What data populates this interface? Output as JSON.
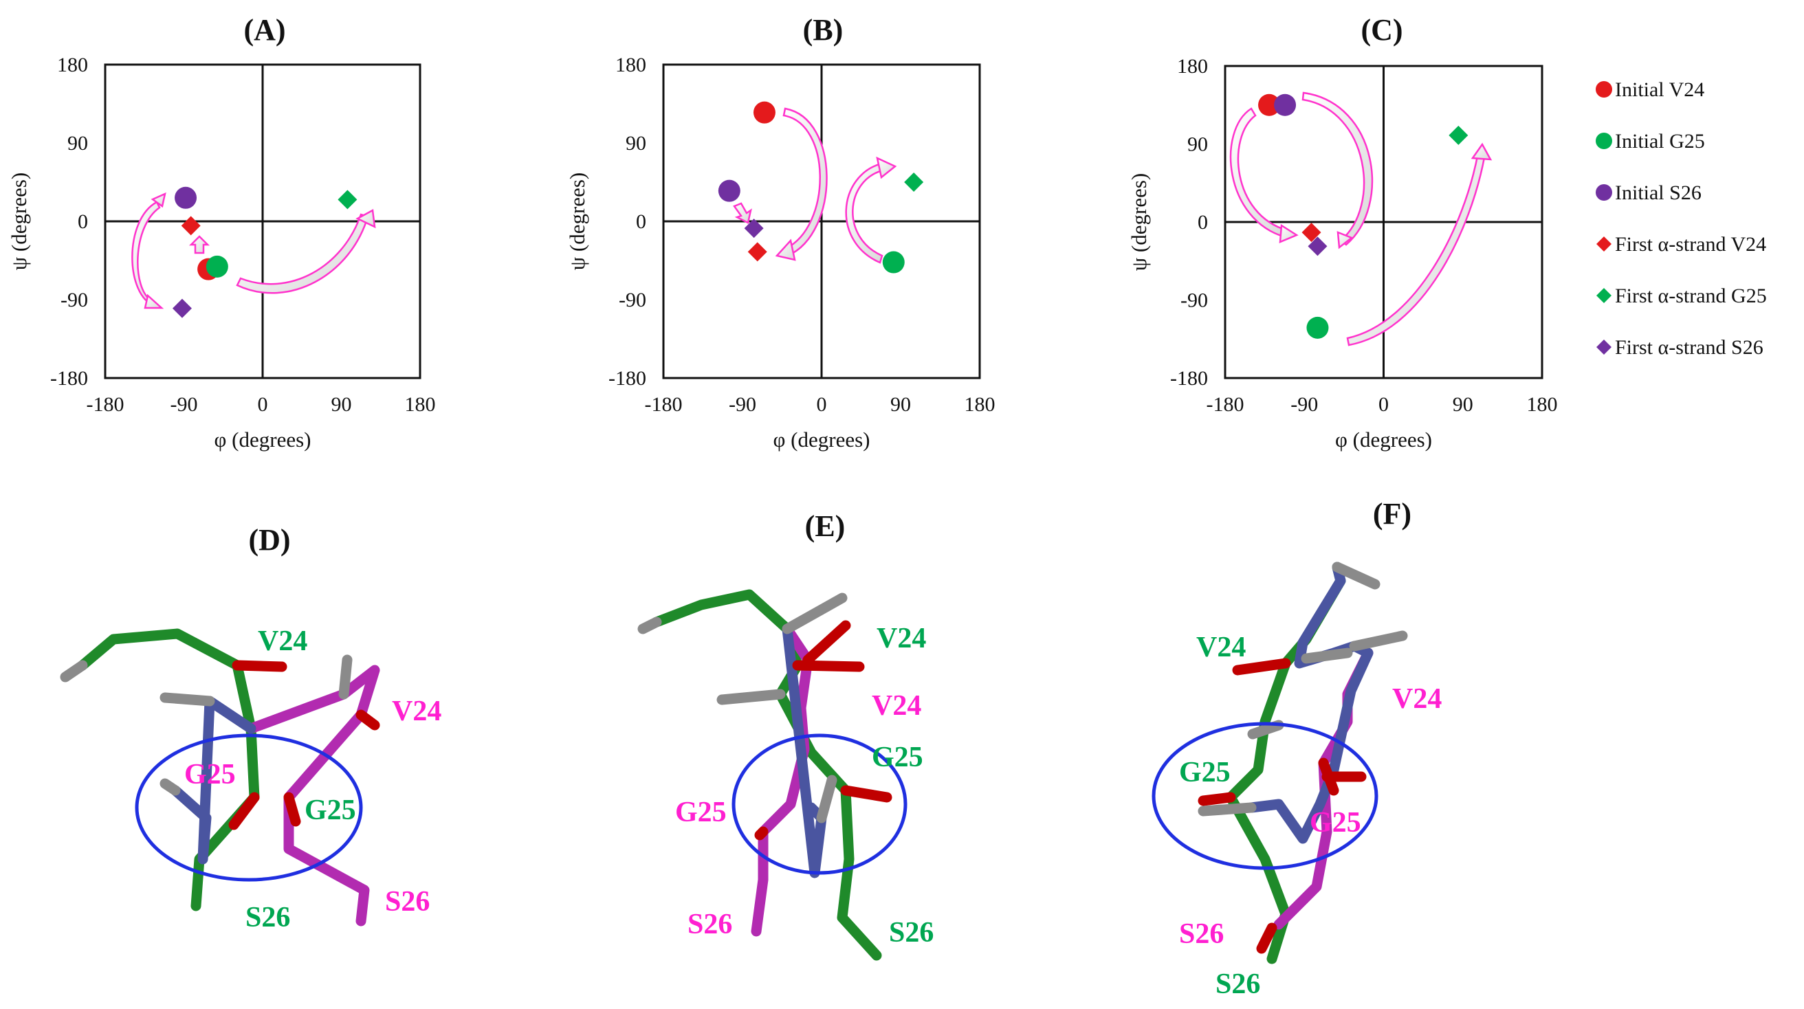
{
  "chart_data": [
    {
      "type": "scatter",
      "panel_label": "(A)",
      "xlabel": "φ (degrees)",
      "ylabel": "ψ (degrees)",
      "xlim": [
        -180,
        180
      ],
      "ylim": [
        -180,
        180
      ],
      "xticks": [
        "-180",
        "-90",
        "0",
        "90",
        "180"
      ],
      "yticks": [
        "180",
        "90",
        "0",
        "-90",
        "-180"
      ],
      "series": [
        {
          "name": "Initial V24",
          "x": -62,
          "y": -55
        },
        {
          "name": "Initial G25",
          "x": -52,
          "y": -52
        },
        {
          "name": "Initial S26",
          "x": -88,
          "y": 27
        },
        {
          "name": "First α-strand V24",
          "x": -82,
          "y": -5
        },
        {
          "name": "First α-strand G25",
          "x": 97,
          "y": 25
        },
        {
          "name": "First α-strand S26",
          "x": -92,
          "y": -100
        }
      ]
    },
    {
      "type": "scatter",
      "panel_label": "(B)",
      "xlabel": "φ (degrees)",
      "ylabel": "ψ (degrees)",
      "xlim": [
        -180,
        180
      ],
      "ylim": [
        -180,
        180
      ],
      "xticks": [
        "-180",
        "-90",
        "0",
        "90",
        "180"
      ],
      "yticks": [
        "180",
        "90",
        "0",
        "-90",
        "-180"
      ],
      "series": [
        {
          "name": "Initial V24",
          "x": -65,
          "y": 125
        },
        {
          "name": "Initial G25",
          "x": 82,
          "y": -47
        },
        {
          "name": "Initial S26",
          "x": -105,
          "y": 35
        },
        {
          "name": "First α-strand V24",
          "x": -73,
          "y": -35
        },
        {
          "name": "First α-strand G25",
          "x": 105,
          "y": 45
        },
        {
          "name": "First α-strand S26",
          "x": -77,
          "y": -8
        }
      ]
    },
    {
      "type": "scatter",
      "panel_label": "(C)",
      "xlabel": "φ (degrees)",
      "ylabel": "ψ (degrees)",
      "xlim": [
        -180,
        180
      ],
      "ylim": [
        -180,
        180
      ],
      "xticks": [
        "-180",
        "-90",
        "0",
        "90",
        "180"
      ],
      "yticks": [
        "180",
        "90",
        "0",
        "-90",
        "-180"
      ],
      "series": [
        {
          "name": "Initial V24",
          "x": -130,
          "y": 135
        },
        {
          "name": "Initial G25",
          "x": -75,
          "y": -122
        },
        {
          "name": "Initial S26",
          "x": -112,
          "y": 135
        },
        {
          "name": "First α-strand V24",
          "x": -82,
          "y": -12
        },
        {
          "name": "First α-strand G25",
          "x": 85,
          "y": 100
        },
        {
          "name": "First α-strand S26",
          "x": -75,
          "y": -28
        }
      ]
    }
  ],
  "legend": {
    "placement": "right",
    "entries": [
      {
        "label": "Initial V24",
        "marker": "circle",
        "color": "#e41a1c"
      },
      {
        "label": "Initial G25",
        "marker": "circle",
        "color": "#00b050"
      },
      {
        "label": "Initial S26",
        "marker": "circle",
        "color": "#7030a0"
      },
      {
        "label": "First α-strand V24",
        "marker": "diamond",
        "color": "#e41a1c"
      },
      {
        "label": "First α-strand G25",
        "marker": "diamond",
        "color": "#00b050"
      },
      {
        "label": "First α-strand S26",
        "marker": "diamond",
        "color": "#7030a0"
      }
    ]
  },
  "structures": [
    {
      "panel_label": "(D)",
      "labels": [
        {
          "text": "V24",
          "color": "green"
        },
        {
          "text": "V24",
          "color": "magenta"
        },
        {
          "text": "G25",
          "color": "magenta"
        },
        {
          "text": "G25",
          "color": "green"
        },
        {
          "text": "S26",
          "color": "green"
        },
        {
          "text": "S26",
          "color": "magenta"
        }
      ]
    },
    {
      "panel_label": "(E)",
      "labels": [
        {
          "text": "V24",
          "color": "green"
        },
        {
          "text": "V24",
          "color": "magenta"
        },
        {
          "text": "G25",
          "color": "green"
        },
        {
          "text": "G25",
          "color": "magenta"
        },
        {
          "text": "S26",
          "color": "magenta"
        },
        {
          "text": "S26",
          "color": "green"
        }
      ]
    },
    {
      "panel_label": "(F)",
      "labels": [
        {
          "text": "V24",
          "color": "green"
        },
        {
          "text": "V24",
          "color": "magenta"
        },
        {
          "text": "G25",
          "color": "green"
        },
        {
          "text": "G25",
          "color": "magenta"
        },
        {
          "text": "S26",
          "color": "magenta"
        },
        {
          "text": "S26",
          "color": "green"
        }
      ]
    }
  ],
  "colors": {
    "red": "#e41a1c",
    "green": "#00b050",
    "purple": "#7030a0",
    "arrow": "#ff33cc",
    "ellipse": "#1f2fe0",
    "stick_green": "#1f8a2a",
    "stick_magenta": "#b22bb0",
    "stick_blue": "#4a55a0",
    "stick_red": "#c00000",
    "stick_gray": "#8a8a8a",
    "label_green": "#00a651",
    "label_magenta": "#ff1fd0"
  }
}
